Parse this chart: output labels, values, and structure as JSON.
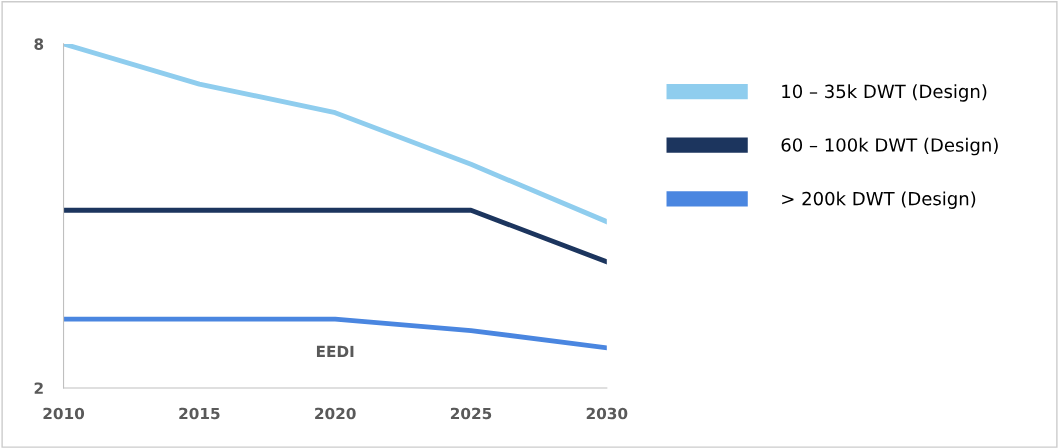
{
  "chart_data": {
    "type": "line",
    "x": [
      2010,
      2015,
      2020,
      2025,
      2030
    ],
    "xlim": [
      2010,
      2030
    ],
    "xticks": [
      2010,
      2015,
      2020,
      2025,
      2030
    ],
    "ylim": [
      2,
      8
    ],
    "yticks": [
      2,
      8
    ],
    "series": [
      {
        "name": "10 – 35k DWT (Design)",
        "color": "#8fcdee",
        "values": [
          8,
          7.3,
          6.8,
          5.9,
          4.9
        ]
      },
      {
        "name": "60 – 100k DWT (Design)",
        "color": "#1c355e",
        "values": [
          5.1,
          5.1,
          5.1,
          5.1,
          4.2
        ]
      },
      {
        "name": "> 200k DWT (Design)",
        "color": "#4a86e0",
        "values": [
          3.2,
          3.2,
          3.2,
          3.0,
          2.7
        ]
      }
    ],
    "annotations": [
      "EEDI"
    ],
    "legend": "right",
    "grid": false,
    "marker": "none",
    "line_style": "solid"
  }
}
